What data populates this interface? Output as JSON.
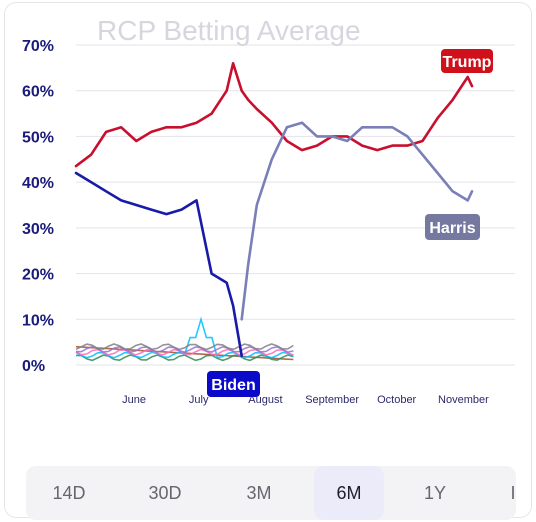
{
  "chart_data": {
    "type": "line",
    "title": "RCP Betting Average",
    "xlabel": "",
    "ylabel": "",
    "ylim": [
      0,
      70
    ],
    "y_ticks": [
      "0%",
      "10%",
      "20%",
      "30%",
      "40%",
      "50%",
      "60%",
      "70%"
    ],
    "x_ticks": [
      "June",
      "July",
      "August",
      "September",
      "October",
      "November"
    ],
    "grid": true,
    "x": [
      "2024-05-05",
      "2024-05-12",
      "2024-05-19",
      "2024-05-26",
      "2024-06-02",
      "2024-06-09",
      "2024-06-16",
      "2024-06-23",
      "2024-06-30",
      "2024-07-07",
      "2024-07-14",
      "2024-07-17",
      "2024-07-21",
      "2024-07-24",
      "2024-07-28",
      "2024-08-04",
      "2024-08-11",
      "2024-08-18",
      "2024-08-25",
      "2024-09-01",
      "2024-09-08",
      "2024-09-15",
      "2024-09-22",
      "2024-09-29",
      "2024-10-06",
      "2024-10-13",
      "2024-10-20",
      "2024-10-27",
      "2024-11-03",
      "2024-11-05"
    ],
    "series": [
      {
        "name": "Trump",
        "color": "#c8102e",
        "values": [
          43.5,
          46,
          51,
          52,
          49,
          51,
          52,
          52,
          53,
          55,
          60,
          66,
          60,
          58,
          56,
          53,
          49,
          47,
          48,
          50,
          50,
          48,
          47,
          48,
          48,
          49,
          54,
          58,
          63,
          61
        ]
      },
      {
        "name": "Harris",
        "color": "#7a7fb8",
        "values": [
          null,
          null,
          null,
          null,
          null,
          null,
          null,
          null,
          null,
          null,
          null,
          null,
          10,
          22,
          35,
          45,
          52,
          53,
          50,
          50,
          49,
          52,
          52,
          52,
          50,
          46,
          42,
          38,
          36,
          38
        ]
      },
      {
        "name": "Biden",
        "color": "#1a1aa8",
        "values": [
          42,
          40,
          38,
          36,
          35,
          34,
          33,
          34,
          36,
          20,
          18,
          13,
          2,
          null,
          null,
          null,
          null,
          null,
          null,
          null,
          null,
          null,
          null,
          null,
          null,
          null,
          null,
          null,
          null,
          null
        ]
      }
    ],
    "legend_labels": [
      {
        "name": "Trump",
        "text": "Trump",
        "bg": "#d0111b"
      },
      {
        "name": "Harris",
        "text": "Harris",
        "bg": "#75799f"
      },
      {
        "name": "Biden",
        "text": "Biden",
        "bg": "#0a0ac8"
      }
    ]
  },
  "time_range": {
    "options": [
      "14D",
      "30D",
      "3M",
      "6M",
      "1Y",
      "I"
    ],
    "selected": "6M"
  }
}
